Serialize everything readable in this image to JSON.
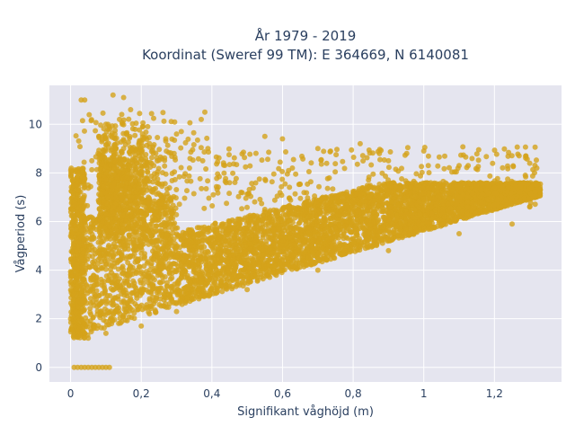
{
  "chart_data": {
    "type": "scatter",
    "title_line1": "År 1979 - 2019",
    "title_line2": "Koordinat (Sweref 99 TM): E 364669, N 6140081",
    "xlabel": "Signifikant våghöjd (m)",
    "ylabel": "Vågperiod (s)",
    "xlim": [
      -0.06,
      1.39
    ],
    "ylim": [
      -0.6,
      11.6
    ],
    "x_ticks": [
      0,
      0.2,
      0.4,
      0.6,
      0.8,
      1,
      1.2
    ],
    "x_tick_labels": [
      "0",
      "0,2",
      "0,4",
      "0,6",
      "0,8",
      "1",
      "1,2"
    ],
    "y_ticks": [
      0,
      2,
      4,
      6,
      8,
      10
    ],
    "y_tick_labels": [
      "0",
      "2",
      "4",
      "6",
      "8",
      "10"
    ],
    "grid": true,
    "marker_color": "#D4A21A",
    "plot_background": "#E5E5EF",
    "grid_color": "#FFFFFF",
    "series": [
      {
        "values_description_points": [
          [
            0.01,
            0.0
          ],
          [
            0.02,
            0.0
          ],
          [
            0.03,
            0.0
          ],
          [
            0.04,
            0.0
          ],
          [
            0.05,
            0.0
          ],
          [
            0.06,
            0.0
          ],
          [
            0.07,
            0.0
          ],
          [
            0.08,
            0.0
          ],
          [
            0.09,
            0.0
          ],
          [
            0.1,
            0.0
          ],
          [
            0.11,
            0.0
          ],
          [
            0.03,
            11.0
          ],
          [
            0.04,
            11.0
          ],
          [
            0.12,
            11.2
          ],
          [
            0.15,
            11.1
          ],
          [
            0.17,
            10.6
          ],
          [
            0.38,
            10.5
          ],
          [
            0.37,
            10.2
          ],
          [
            0.82,
            9.2
          ],
          [
            1.0,
            8.9
          ],
          [
            1.27,
            8.7
          ],
          [
            0.3,
            9.6
          ],
          [
            0.55,
            9.5
          ],
          [
            0.6,
            9.4
          ],
          [
            0.7,
            9.0
          ],
          [
            0.9,
            8.5
          ],
          [
            1.1,
            8.3
          ],
          [
            1.3,
            8.4
          ],
          [
            1.32,
            8.2
          ],
          [
            1.32,
            7.5
          ],
          [
            1.3,
            6.6
          ],
          [
            1.25,
            5.9
          ],
          [
            1.1,
            5.5
          ],
          [
            0.9,
            4.8
          ],
          [
            0.7,
            4.0
          ],
          [
            0.5,
            3.2
          ],
          [
            0.3,
            2.3
          ],
          [
            0.2,
            1.7
          ],
          [
            0.1,
            1.4
          ],
          [
            0.05,
            1.2
          ],
          [
            0.02,
            1.5
          ],
          [
            0.0,
            2.0
          ],
          [
            0.02,
            3.5
          ],
          [
            0.03,
            4.5
          ],
          [
            0.04,
            6.0
          ],
          [
            0.05,
            7.5
          ],
          [
            0.06,
            8.5
          ],
          [
            0.08,
            9.5
          ],
          [
            0.1,
            10.0
          ],
          [
            0.15,
            9.0
          ],
          [
            0.2,
            8.2
          ],
          [
            0.22,
            7.0
          ],
          [
            0.25,
            6.2
          ],
          [
            0.45,
            7.6
          ],
          [
            0.55,
            6.5
          ],
          [
            0.75,
            6.8
          ],
          [
            0.95,
            7.2
          ],
          [
            1.15,
            7.5
          ]
        ]
      }
    ]
  }
}
